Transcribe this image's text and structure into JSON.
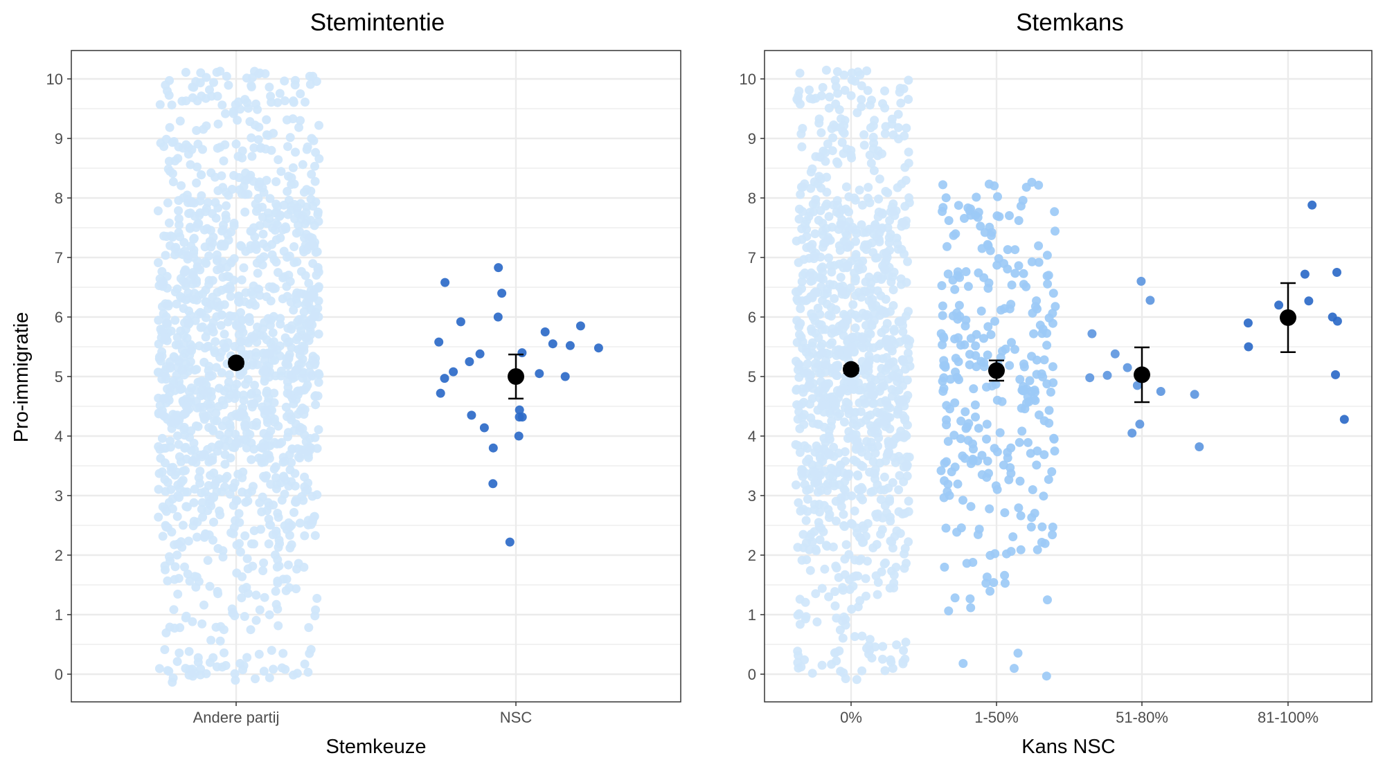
{
  "figure": {
    "ylabel": "Pro-immigratie",
    "colors": {
      "panel_border": "#333333",
      "grid": "#ebebeb",
      "mean": "#000000",
      "light": "#cfe6fb",
      "mid": "#9ccaf6",
      "mid2": "#5e97e0",
      "dark": "#2d6ac8",
      "tick_text": "#4d4d4d"
    }
  },
  "chart_data": [
    {
      "type": "scatter",
      "title": "Stemintentie",
      "xlabel": "Stemkeuze",
      "ylabel": "Pro-immigratie",
      "categories": [
        "Andere partij",
        "NSC"
      ],
      "ylim": [
        -0.5,
        10.5
      ],
      "yticks": [
        "0",
        "1",
        "2",
        "3",
        "4",
        "5",
        "6",
        "7",
        "8",
        "9",
        "10"
      ],
      "grid": true,
      "groups": [
        {
          "category": "Andere partij",
          "color": "#cfe6fb",
          "n": 1400,
          "ymin": -0.15,
          "ymax": 10.15,
          "mean": 5.23,
          "ci": [
            5.17,
            5.29
          ],
          "sample_points": []
        },
        {
          "category": "NSC",
          "color": "#2d6ac8",
          "n": 30,
          "mean": 5.0,
          "ci": [
            4.63,
            5.37
          ],
          "sample_points": [
            6.83,
            6.58,
            6.4,
            6.0,
            5.92,
            5.85,
            5.75,
            5.58,
            5.55,
            5.52,
            5.48,
            5.4,
            5.38,
            5.25,
            5.08,
            5.05,
            5.0,
            4.97,
            4.72,
            4.44,
            4.35,
            4.32,
            4.32,
            4.14,
            4.0,
            3.8,
            3.2,
            2.22
          ]
        }
      ]
    },
    {
      "type": "scatter",
      "title": "Stemkans",
      "xlabel": "Kans NSC",
      "ylabel": "",
      "categories": [
        "0%",
        "1-50%",
        "51-80%",
        "81-100%"
      ],
      "ylim": [
        -0.5,
        10.5
      ],
      "yticks": [
        "0",
        "1",
        "2",
        "3",
        "4",
        "5",
        "6",
        "7",
        "8",
        "9",
        "10"
      ],
      "grid": true,
      "groups": [
        {
          "category": "0%",
          "color": "#cfe6fb",
          "n": 1100,
          "ymin": -0.1,
          "ymax": 10.15,
          "mean": 5.12,
          "ci": [
            5.06,
            5.18
          ],
          "sample_points": []
        },
        {
          "category": "1-50%",
          "color": "#9ccaf6",
          "n": 300,
          "ymin": -0.15,
          "ymax": 8.3,
          "mean": 5.1,
          "ci": [
            4.93,
            5.27
          ],
          "sample_points": []
        },
        {
          "category": "51-80%",
          "color": "#5e97e0",
          "n": 14,
          "mean": 5.03,
          "ci": [
            4.57,
            5.49
          ],
          "sample_points": [
            6.6,
            6.28,
            5.72,
            5.38,
            5.15,
            5.02,
            4.98,
            4.85,
            4.75,
            4.7,
            4.2,
            4.05,
            3.82
          ]
        },
        {
          "category": "81-100%",
          "color": "#2d6ac8",
          "n": 13,
          "mean": 5.99,
          "ci": [
            5.41,
            6.57
          ],
          "sample_points": [
            7.88,
            6.75,
            6.72,
            6.27,
            6.2,
            6.0,
            5.93,
            5.9,
            5.5,
            5.03,
            4.28
          ]
        }
      ]
    }
  ]
}
